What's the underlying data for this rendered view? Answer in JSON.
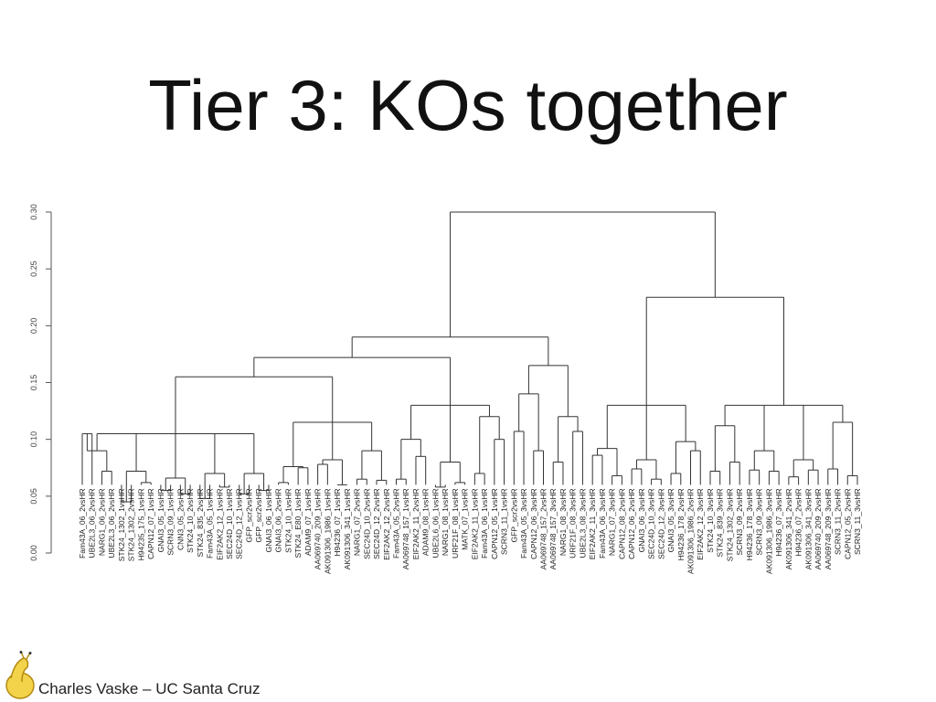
{
  "slide": {
    "title": "Tier 3: KOs together",
    "footer": "Charles Vaske – UC Santa Cruz",
    "logo_icon": "banana-slug-logo"
  },
  "chart_data": {
    "type": "dendrogram",
    "title": "",
    "xlabel": "",
    "ylabel": "",
    "ylim": [
      0,
      0.3
    ],
    "y_ticks": [
      "0.00",
      "0.05",
      "0.10",
      "0.15",
      "0.20",
      "0.25",
      "0.30"
    ],
    "leaves": [
      "Fam43A_06_2vsHR",
      "UBE2L3_06_2vsHR",
      "NARG1_06_2vsHR",
      "UBE2L3_06_2vsHR",
      "STK24_1302_1vsHR",
      "STK24_1302_2vsHR",
      "H94235_175_1vsHR",
      "CAPN12_07_1vsHR",
      "GNAI3_05_1vsHR",
      "SCRN3_09_1vsHR",
      "CNN3_05_2vsHR",
      "STK24_10_2vsHR",
      "STK24_835_2vsHR",
      "Fam43A_05_1vsHR",
      "EIF2AK2_12_1vsHR",
      "SEC24D_10_1vsHR",
      "SEC24D_12_1vsHR",
      "GFP_scr2vsHR",
      "GFP_scr2vsHR",
      "GNAI3_06_1vsHR",
      "GNAI3_06_2vsHR",
      "STK24_10_1vsHR",
      "STK24_E80_1vsHR",
      "ADAM9_07_1vsHR",
      "AA069740_209_1vsHR",
      "AK091306_1986_1vsHR",
      "H94236_07_1vsHR",
      "AK091306_341_1vsHR",
      "NARG1_07_2vsHR",
      "SEC24D_10_2vsHR",
      "SEC24D_12_2vsHR",
      "EIF2AK2_12_2vsHR",
      "Fam43A_05_2vsHR",
      "AA069748_157_1vsHR",
      "EIF2AK2_11_2vsHR",
      "ADAM9_08_1vsHR",
      "UBE2L6_06_1vsHR",
      "NARG1_08_1vsHR",
      "URF21F_08_1vsHR",
      "MATK_07_1vsHR",
      "EIF2AK2_11_1vsHR",
      "Fam43A_06_1vsHR",
      "CAPN12_05_1vsHR",
      "SCRN3_11_1vsHR",
      "GFP_scr2vsHR",
      "Fam43A_05_3vsHR",
      "CAPN12_06_3vsHR",
      "AA069748_157_2vsHR",
      "AA069748_157_3vsHR",
      "NARG1_08_3vsHR",
      "URF21F_08_3vsHR",
      "UBE2L3_08_3vsHR",
      "EIF2AK2_11_3vsHR",
      "Fam43A_06_3vsHR",
      "NARG1_07_3vsHR",
      "CAPN12_08_2vsHR",
      "CAPN12_06_2vsHR",
      "GNAI3_06_3vsHR",
      "SEC24D_10_3vsHR",
      "SEC24D_12_3vsHR",
      "GNAI3_05_3vsHR",
      "H94236_178_2vsHR",
      "AK091306_1986_2vsHR",
      "EIF2AK2_12_3vsHR",
      "STK24_10_3vsHR",
      "STK24_839_3vsHR",
      "STK24_1302_3vsHR",
      "SCRN3_09_2vsHR",
      "H94236_178_3vsHR",
      "SCRN3_09_3vsHR",
      "AK091306_1986_3vsHR",
      "H94236_07_3vsHR",
      "AK091306_341_2vsHR",
      "H94236_07_2vsHR",
      "AK091306_341_3vsHR",
      "AA069740_209_2vsHR",
      "AA069748_209_3vsHR",
      "SCRN3_11_2vsHR",
      "CAPN12_05_2vsHR",
      "SCRN3_11_3vsHR"
    ],
    "merges": [
      [
        0,
        1,
        0.105
      ],
      [
        2,
        3,
        0.072
      ],
      [
        4,
        5,
        0.045
      ],
      [
        6,
        7,
        0.062
      ],
      [
        8,
        9,
        0.055
      ],
      [
        10,
        11,
        0.052
      ],
      [
        12,
        13,
        0.048
      ],
      [
        14,
        15,
        0.058
      ],
      [
        16,
        17,
        0.052
      ],
      [
        18,
        19,
        0.055
      ],
      [
        20,
        21,
        0.062
      ],
      [
        22,
        23,
        0.075
      ],
      [
        24,
        25,
        0.078
      ],
      [
        26,
        27,
        0.06
      ],
      [
        28,
        29,
        0.065
      ],
      [
        30,
        31,
        0.064
      ],
      [
        32,
        33,
        0.065
      ],
      [
        34,
        35,
        0.085
      ],
      [
        36,
        37,
        0.058
      ],
      [
        38,
        39,
        0.062
      ],
      [
        40,
        41,
        0.07
      ],
      [
        42,
        43,
        0.1
      ],
      [
        44,
        45,
        0.107
      ],
      [
        46,
        47,
        0.09
      ],
      [
        48,
        49,
        0.08
      ],
      [
        50,
        51,
        0.107
      ],
      [
        52,
        53,
        0.086
      ],
      [
        54,
        55,
        0.068
      ],
      [
        56,
        57,
        0.074
      ],
      [
        58,
        59,
        0.065
      ],
      [
        60,
        61,
        0.07
      ],
      [
        62,
        63,
        0.09
      ],
      [
        64,
        65,
        0.072
      ],
      [
        66,
        67,
        0.08
      ],
      [
        68,
        69,
        0.073
      ],
      [
        70,
        71,
        0.072
      ],
      [
        72,
        73,
        0.067
      ],
      [
        74,
        75,
        0.073
      ],
      [
        76,
        77,
        0.074
      ],
      [
        78,
        79,
        0.068
      ]
    ]
  }
}
